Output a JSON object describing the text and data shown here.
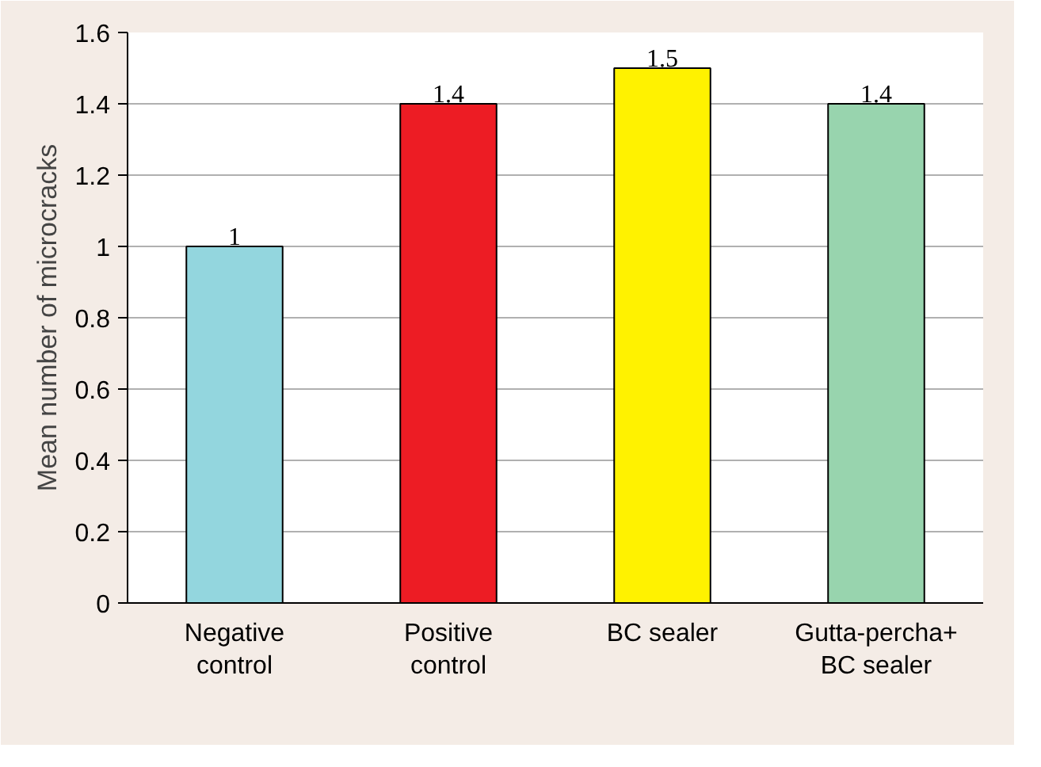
{
  "chart_data": {
    "type": "bar",
    "ylabel": "Mean number of microcracks",
    "categories": [
      "Negative\ncontrol",
      "Positive\ncontrol",
      "BC sealer",
      "Gutta-percha+\nBC sealer"
    ],
    "values": [
      1,
      1.4,
      1.5,
      1.4
    ],
    "colors": [
      "#93d6de",
      "#ed1c24",
      "#fff200",
      "#98d4ae"
    ],
    "ylim": [
      0,
      1.6
    ],
    "yticks": [
      0,
      0.2,
      0.4,
      0.6,
      0.8,
      1,
      1.2,
      1.4,
      1.6
    ],
    "grid": "y",
    "data_labels": true
  }
}
